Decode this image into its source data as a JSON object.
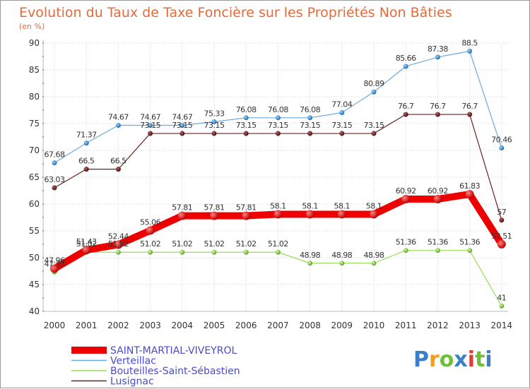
{
  "chart_data": {
    "type": "line",
    "title": "Evolution du Taux de Taxe Foncière sur les Propriétés Non Bâties",
    "ylabel": "(en %)",
    "xlabel": "",
    "ylim": [
      40,
      90
    ],
    "yticks": [
      40,
      45,
      50,
      55,
      60,
      65,
      70,
      75,
      80,
      85,
      90
    ],
    "grid": true,
    "legend_position": "bottom-left",
    "categories": [
      "2000",
      "2001",
      "2002",
      "2003",
      "2004",
      "2005",
      "2006",
      "2007",
      "2008",
      "2009",
      "2010",
      "2011",
      "2012",
      "2013",
      "2014"
    ],
    "series": [
      {
        "name": "SAINT-MARTIAL-VIVEYROL",
        "color": "#ee0000",
        "values": [
          47.96,
          51.43,
          52.44,
          55.06,
          57.81,
          57.81,
          57.81,
          58.1,
          58.1,
          58.1,
          58.1,
          60.92,
          60.92,
          61.83,
          52.51
        ],
        "labels": [
          "47.96",
          "51.43",
          "52.44",
          "55.06",
          "57.81",
          "57.81",
          "57.81",
          "58.1",
          "58.1",
          "58.1",
          "58.1",
          "60.92",
          "60.92",
          "61.83",
          "52.51"
        ]
      },
      {
        "name": "Verteillac",
        "color": "#6fa8dc",
        "values": [
          67.68,
          71.37,
          74.67,
          74.67,
          74.67,
          75.33,
          76.08,
          76.08,
          76.08,
          77.04,
          80.89,
          85.66,
          87.38,
          88.5,
          70.46
        ],
        "labels": [
          "67.68",
          "71.37",
          "74.67",
          "74.67",
          "74.67",
          "75.33",
          "76.08",
          "76.08",
          "76.08",
          "77.04",
          "80.89",
          "85.66",
          "87.38",
          "88.5",
          "70.46"
        ]
      },
      {
        "name": "Bouteilles-Saint-Sébastien",
        "color": "#99dd55",
        "values": [
          47.33,
          51.02,
          51.02,
          51.02,
          51.02,
          51.02,
          51.02,
          51.02,
          48.98,
          48.98,
          48.98,
          51.36,
          51.36,
          51.36,
          41
        ],
        "labels": [
          "47.33",
          "51.02",
          "51.02",
          "51.02",
          "51.02",
          "51.02",
          "51.02",
          "51.02",
          "48.98",
          "48.98",
          "48.98",
          "51.36",
          "51.36",
          "51.36",
          "41"
        ]
      },
      {
        "name": "Lusignac",
        "color": "#6b2222",
        "values": [
          63.03,
          66.5,
          66.5,
          73.15,
          73.15,
          73.15,
          73.15,
          73.15,
          73.15,
          73.15,
          73.15,
          76.7,
          76.7,
          76.7,
          57
        ],
        "labels": [
          "63.03",
          "66.5",
          "66.5",
          "73.15",
          "73.15",
          "73.15",
          "73.15",
          "73.15",
          "73.15",
          "73.15",
          "73.15",
          "76.7",
          "76.7",
          "76.7",
          "57"
        ]
      }
    ]
  },
  "logo": {
    "text": "Proxiti",
    "colors": [
      "#3a7fc7",
      "#f0a020",
      "#6fbf3a",
      "#3a7fc7",
      "#e03c3c",
      "#6fbf3a",
      "#3a7fc7"
    ]
  }
}
